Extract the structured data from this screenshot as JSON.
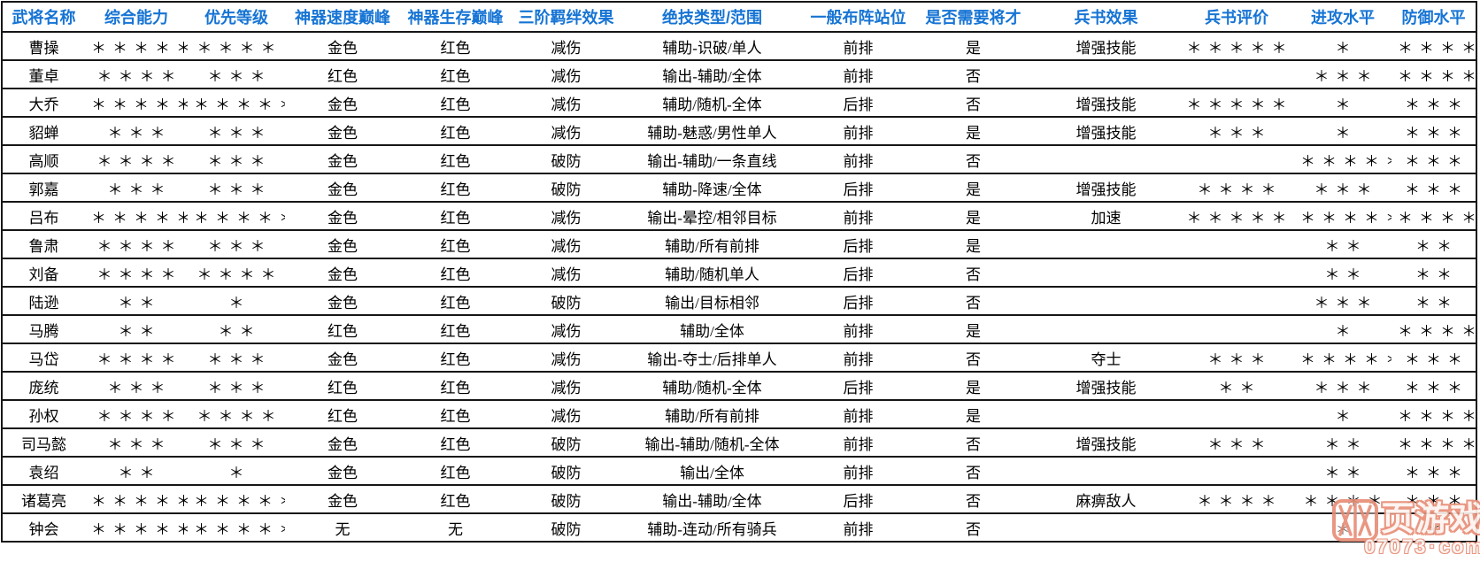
{
  "colors": {
    "header_text": "#1674d4",
    "body_text": "#000000",
    "table_border": "#161616",
    "watermark": "#e88f78",
    "background": "#ffffff"
  },
  "table": {
    "star_char": "＊",
    "columns": [
      {
        "key": "name",
        "label": "武将名称",
        "type": "text"
      },
      {
        "key": "overall",
        "label": "综合能力",
        "type": "stars"
      },
      {
        "key": "priority",
        "label": "优先等级",
        "type": "stars"
      },
      {
        "key": "speed_peak",
        "label": "神器速度巅峰",
        "type": "text"
      },
      {
        "key": "survival_peak",
        "label": "神器生存巅峰",
        "type": "text"
      },
      {
        "key": "bond_effect",
        "label": "三阶羁绊效果",
        "type": "text"
      },
      {
        "key": "skill_type",
        "label": "绝技类型/范围",
        "type": "text"
      },
      {
        "key": "formation",
        "label": "一般布阵站位",
        "type": "text"
      },
      {
        "key": "need_talent",
        "label": "是否需要将才",
        "type": "text"
      },
      {
        "key": "book_effect",
        "label": "兵书效果",
        "type": "text"
      },
      {
        "key": "book_rating",
        "label": "兵书评价",
        "type": "stars"
      },
      {
        "key": "attack",
        "label": "进攻水平",
        "type": "stars"
      },
      {
        "key": "defense",
        "label": "防御水平",
        "type": "stars"
      }
    ],
    "rows": [
      {
        "name": "曹操",
        "overall": 5,
        "priority": 4,
        "speed_peak": "金色",
        "survival_peak": "红色",
        "bond_effect": "减伤",
        "skill_type": "辅助-识破/单人",
        "formation": "前排",
        "need_talent": "是",
        "book_effect": "增强技能",
        "book_rating": 5,
        "attack": 1,
        "defense": 4
      },
      {
        "name": "董卓",
        "overall": 4,
        "priority": 3,
        "speed_peak": "红色",
        "survival_peak": "红色",
        "bond_effect": "减伤",
        "skill_type": "输出-辅助/全体",
        "formation": "前排",
        "need_talent": "否",
        "book_effect": "",
        "book_rating": 0,
        "attack": 3,
        "defense": 5
      },
      {
        "name": "大乔",
        "overall": 5,
        "priority": 5,
        "speed_peak": "金色",
        "survival_peak": "红色",
        "bond_effect": "减伤",
        "skill_type": "辅助/随机-全体",
        "formation": "后排",
        "need_talent": "否",
        "book_effect": "增强技能",
        "book_rating": 5,
        "attack": 1,
        "defense": 3
      },
      {
        "name": "貂蝉",
        "overall": 3,
        "priority": 3,
        "speed_peak": "金色",
        "survival_peak": "红色",
        "bond_effect": "减伤",
        "skill_type": "辅助-魅惑/男性单人",
        "formation": "前排",
        "need_talent": "是",
        "book_effect": "增强技能",
        "book_rating": 3,
        "attack": 1,
        "defense": 3
      },
      {
        "name": "高顺",
        "overall": 4,
        "priority": 3,
        "speed_peak": "金色",
        "survival_peak": "红色",
        "bond_effect": "破防",
        "skill_type": "输出-辅助/一条直线",
        "formation": "前排",
        "need_talent": "否",
        "book_effect": "",
        "book_rating": 0,
        "attack": 5,
        "defense": 3
      },
      {
        "name": "郭嘉",
        "overall": 3,
        "priority": 3,
        "speed_peak": "金色",
        "survival_peak": "红色",
        "bond_effect": "破防",
        "skill_type": "辅助-降速/全体",
        "formation": "后排",
        "need_talent": "是",
        "book_effect": "增强技能",
        "book_rating": 4,
        "attack": 3,
        "defense": 3
      },
      {
        "name": "吕布",
        "overall": 5,
        "priority": 5,
        "speed_peak": "金色",
        "survival_peak": "红色",
        "bond_effect": "减伤",
        "skill_type": "输出-晕控/相邻目标",
        "formation": "前排",
        "need_talent": "是",
        "book_effect": "加速",
        "book_rating": 5,
        "attack": 5,
        "defense": 5
      },
      {
        "name": "鲁肃",
        "overall": 4,
        "priority": 3,
        "speed_peak": "金色",
        "survival_peak": "红色",
        "bond_effect": "减伤",
        "skill_type": "辅助/所有前排",
        "formation": "后排",
        "need_talent": "是",
        "book_effect": "",
        "book_rating": 0,
        "attack": 2,
        "defense": 2
      },
      {
        "name": "刘备",
        "overall": 4,
        "priority": 4,
        "speed_peak": "金色",
        "survival_peak": "红色",
        "bond_effect": "减伤",
        "skill_type": "辅助/随机单人",
        "formation": "后排",
        "need_talent": "否",
        "book_effect": "",
        "book_rating": 0,
        "attack": 2,
        "defense": 2
      },
      {
        "name": "陆逊",
        "overall": 2,
        "priority": 1,
        "speed_peak": "金色",
        "survival_peak": "红色",
        "bond_effect": "破防",
        "skill_type": "输出/目标相邻",
        "formation": "后排",
        "need_talent": "否",
        "book_effect": "",
        "book_rating": 0,
        "attack": 3,
        "defense": 2
      },
      {
        "name": "马腾",
        "overall": 2,
        "priority": 2,
        "speed_peak": "红色",
        "survival_peak": "红色",
        "bond_effect": "减伤",
        "skill_type": "辅助/全体",
        "formation": "前排",
        "need_talent": "是",
        "book_effect": "",
        "book_rating": 0,
        "attack": 1,
        "defense": 4
      },
      {
        "name": "马岱",
        "overall": 4,
        "priority": 3,
        "speed_peak": "金色",
        "survival_peak": "红色",
        "bond_effect": "减伤",
        "skill_type": "输出-夺士/后排单人",
        "formation": "前排",
        "need_talent": "否",
        "book_effect": "夺士",
        "book_rating": 3,
        "attack": 5,
        "defense": 3
      },
      {
        "name": "庞统",
        "overall": 3,
        "priority": 3,
        "speed_peak": "红色",
        "survival_peak": "红色",
        "bond_effect": "减伤",
        "skill_type": "辅助/随机-全体",
        "formation": "后排",
        "need_talent": "是",
        "book_effect": "增强技能",
        "book_rating": 2,
        "attack": 3,
        "defense": 3
      },
      {
        "name": "孙权",
        "overall": 4,
        "priority": 4,
        "speed_peak": "红色",
        "survival_peak": "红色",
        "bond_effect": "减伤",
        "skill_type": "辅助/所有前排",
        "formation": "前排",
        "need_talent": "是",
        "book_effect": "",
        "book_rating": 0,
        "attack": 1,
        "defense": 4
      },
      {
        "name": "司马懿",
        "overall": 3,
        "priority": 3,
        "speed_peak": "金色",
        "survival_peak": "红色",
        "bond_effect": "破防",
        "skill_type": "输出-辅助/随机-全体",
        "formation": "前排",
        "need_talent": "否",
        "book_effect": "增强技能",
        "book_rating": 3,
        "attack": 2,
        "defense": 4
      },
      {
        "name": "袁绍",
        "overall": 2,
        "priority": 1,
        "speed_peak": "金色",
        "survival_peak": "红色",
        "bond_effect": "破防",
        "skill_type": "输出/全体",
        "formation": "前排",
        "need_talent": "否",
        "book_effect": "",
        "book_rating": 0,
        "attack": 2,
        "defense": 3
      },
      {
        "name": "诸葛亮",
        "overall": 5,
        "priority": 5,
        "speed_peak": "金色",
        "survival_peak": "红色",
        "bond_effect": "破防",
        "skill_type": "输出-辅助/全体",
        "formation": "后排",
        "need_talent": "否",
        "book_effect": "麻痹敌人",
        "book_rating": 4,
        "attack": 4,
        "defense": 3
      },
      {
        "name": "钟会",
        "overall": 5,
        "priority": 5,
        "speed_peak": "无",
        "survival_peak": "无",
        "bond_effect": "破防",
        "skill_type": "辅助-连动/所有骑兵",
        "formation": "前排",
        "need_talent": "否",
        "book_effect": "",
        "book_rating": 0,
        "attack": 1,
        "defense": 1
      }
    ]
  },
  "watermark": {
    "brand_text": "页游戏",
    "site_number": "07073",
    "separator": "·",
    "site_tld": "com"
  }
}
